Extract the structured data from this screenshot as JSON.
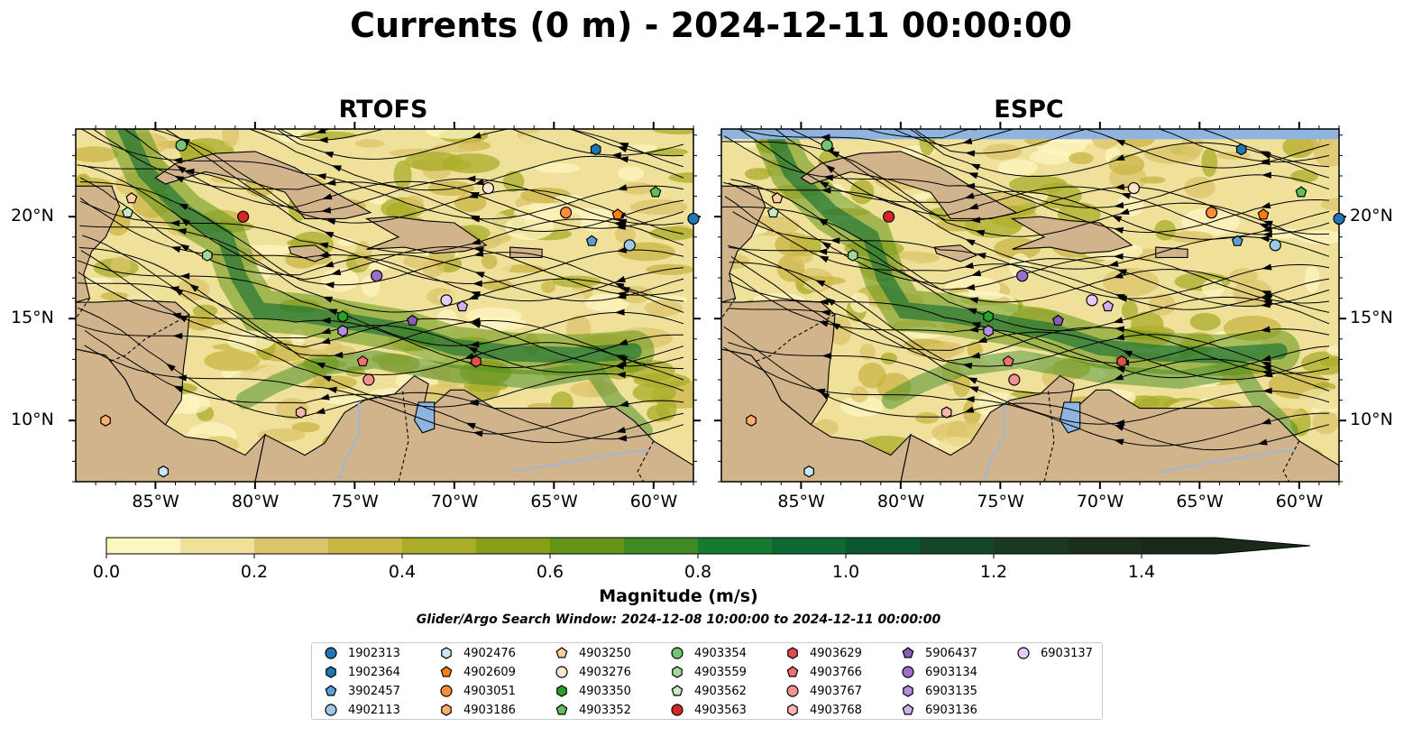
{
  "title": "Currents (0 m) - 2024-12-11 00:00:00",
  "panels": [
    {
      "name": "RTOFS"
    },
    {
      "name": "ESPC"
    }
  ],
  "map": {
    "lon_range": [
      -89,
      -58
    ],
    "lat_range": [
      7,
      24.3
    ],
    "lon_ticks": [
      "85°W",
      "80°W",
      "75°W",
      "70°W",
      "65°W",
      "60°W"
    ],
    "lat_ticks": [
      "20°N",
      "15°N",
      "10°N"
    ],
    "land_color": "#d2b48c",
    "lake_color": "#8fb4e0",
    "streamline_color": "#000000"
  },
  "colorbar": {
    "label": "Magnitude (m/s)",
    "min": 0.0,
    "max": 1.5,
    "extend": "max",
    "tick_labels": [
      "0.0",
      "0.2",
      "0.4",
      "0.6",
      "0.8",
      "1.0",
      "1.2",
      "1.4"
    ],
    "colors": [
      "#fdf6c1",
      "#efe09a",
      "#dcc46a",
      "#c9b544",
      "#a9ad2a",
      "#87a01a",
      "#649516",
      "#3f8a22",
      "#177a31",
      "#0e6a32",
      "#0b5830",
      "#16452a",
      "#1a3a24",
      "#1b2f1d",
      "#1a2a1a"
    ]
  },
  "search_window": "Glider/Argo Search Window: 2024-12-08 10:00:00 to 2024-12-11 00:00:00",
  "legend": [
    {
      "id": "1902313",
      "marker": "circle",
      "color": "#1f77b4"
    },
    {
      "id": "1902364",
      "marker": "hexagon",
      "color": "#1f77b4"
    },
    {
      "id": "3902457",
      "marker": "pentagon",
      "color": "#5aa0d8"
    },
    {
      "id": "4902113",
      "marker": "circle",
      "color": "#9ecae1"
    },
    {
      "id": "4902476",
      "marker": "hexagon",
      "color": "#c6e8f7"
    },
    {
      "id": "4902609",
      "marker": "pentagon",
      "color": "#ff7f0e"
    },
    {
      "id": "4903051",
      "marker": "circle",
      "color": "#fd8d3c"
    },
    {
      "id": "4903186",
      "marker": "hexagon",
      "color": "#fdae6b"
    },
    {
      "id": "4903250",
      "marker": "pentagon",
      "color": "#fdd0a2"
    },
    {
      "id": "4903276",
      "marker": "circle",
      "color": "#fee6ce"
    },
    {
      "id": "4903350",
      "marker": "hexagon",
      "color": "#2ca02c"
    },
    {
      "id": "4903352",
      "marker": "pentagon",
      "color": "#5cc05c"
    },
    {
      "id": "4903354",
      "marker": "circle",
      "color": "#74c476"
    },
    {
      "id": "4903559",
      "marker": "hexagon",
      "color": "#a1d99b"
    },
    {
      "id": "4903562",
      "marker": "pentagon",
      "color": "#c7e9c0"
    },
    {
      "id": "4903563",
      "marker": "circle",
      "color": "#d62728"
    },
    {
      "id": "4903629",
      "marker": "hexagon",
      "color": "#e0504a"
    },
    {
      "id": "4903766",
      "marker": "pentagon",
      "color": "#f07070"
    },
    {
      "id": "4903767",
      "marker": "circle",
      "color": "#f59090"
    },
    {
      "id": "4903768",
      "marker": "hexagon",
      "color": "#fbb4ae"
    },
    {
      "id": "5906437",
      "marker": "pentagon",
      "color": "#8a5bb8"
    },
    {
      "id": "6903134",
      "marker": "circle",
      "color": "#9c6fce"
    },
    {
      "id": "6903135",
      "marker": "hexagon",
      "color": "#b58ede"
    },
    {
      "id": "6903136",
      "marker": "pentagon",
      "color": "#cfb0ee"
    },
    {
      "id": "6903137",
      "marker": "circle",
      "color": "#e6ccf8"
    }
  ],
  "floats": [
    {
      "id": "1902313",
      "lon": -58.0,
      "lat": 19.9
    },
    {
      "id": "1902364",
      "lon": -62.9,
      "lat": 23.3
    },
    {
      "id": "3902457",
      "lon": -63.1,
      "lat": 18.8
    },
    {
      "id": "4902113",
      "lon": -61.2,
      "lat": 18.6
    },
    {
      "id": "4902476",
      "lon": -84.6,
      "lat": 7.5
    },
    {
      "id": "4902609",
      "lon": -61.8,
      "lat": 20.1
    },
    {
      "id": "4903051",
      "lon": -64.4,
      "lat": 20.2
    },
    {
      "id": "4903186",
      "lon": -87.5,
      "lat": 10.0
    },
    {
      "id": "4903250",
      "lon": -86.2,
      "lat": 20.9
    },
    {
      "id": "4903276",
      "lon": -68.3,
      "lat": 21.4
    },
    {
      "id": "4903350",
      "lon": -75.6,
      "lat": 15.1
    },
    {
      "id": "4903352",
      "lon": -59.9,
      "lat": 21.2
    },
    {
      "id": "4903354",
      "lon": -83.7,
      "lat": 23.5
    },
    {
      "id": "4903559",
      "lon": -82.4,
      "lat": 18.1
    },
    {
      "id": "4903562",
      "lon": -86.4,
      "lat": 20.2
    },
    {
      "id": "4903563",
      "lon": -80.6,
      "lat": 20.0
    },
    {
      "id": "4903629",
      "lon": -68.9,
      "lat": 12.9
    },
    {
      "id": "4903766",
      "lon": -74.6,
      "lat": 12.9
    },
    {
      "id": "4903767",
      "lon": -74.3,
      "lat": 12.0
    },
    {
      "id": "4903768",
      "lon": -77.7,
      "lat": 10.4
    },
    {
      "id": "5906437",
      "lon": -72.1,
      "lat": 14.9
    },
    {
      "id": "6903134",
      "lon": -73.9,
      "lat": 17.1
    },
    {
      "id": "6903135",
      "lon": -75.6,
      "lat": 14.4
    },
    {
      "id": "6903136",
      "lon": -69.6,
      "lat": 15.6
    },
    {
      "id": "6903137",
      "lon": -70.4,
      "lat": 15.9
    }
  ]
}
